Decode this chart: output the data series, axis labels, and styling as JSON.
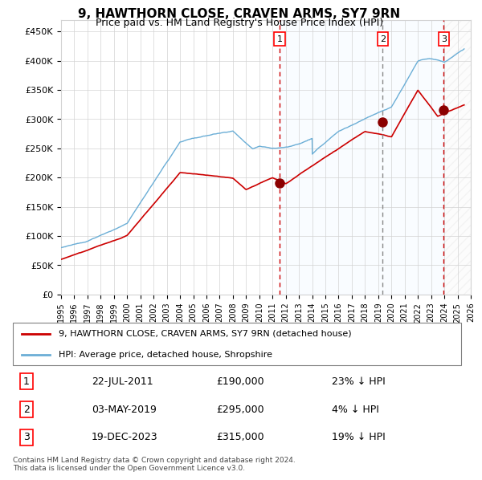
{
  "title": "9, HAWTHORN CLOSE, CRAVEN ARMS, SY7 9RN",
  "subtitle": "Price paid vs. HM Land Registry's House Price Index (HPI)",
  "x_start_year": 1995,
  "x_end_year": 2026,
  "y_ticks": [
    0,
    50000,
    100000,
    150000,
    200000,
    250000,
    300000,
    350000,
    400000,
    450000
  ],
  "y_tick_labels": [
    "£0",
    "£50K",
    "£100K",
    "£150K",
    "£200K",
    "£250K",
    "£300K",
    "£350K",
    "£400K",
    "£450K"
  ],
  "sale_dates": [
    "22-JUL-2011",
    "03-MAY-2019",
    "19-DEC-2023"
  ],
  "sale_years": [
    2011.55,
    2019.34,
    2023.96
  ],
  "sale_prices": [
    190000,
    295000,
    315000
  ],
  "sale_labels": [
    "1",
    "2",
    "3"
  ],
  "sale_pct_hpi": [
    "23% ↓ HPI",
    "4% ↓ HPI",
    "19% ↓ HPI"
  ],
  "hpi_color": "#6baed6",
  "price_color": "#cc0000",
  "sale_dot_color": "#8b0000",
  "background_shade_color": "#ddeeff",
  "vline1_color": "#cc0000",
  "vline2_color": "#888888",
  "vline3_color": "#cc0000",
  "hatch_region_color": "#cccccc",
  "legend_label_price": "9, HAWTHORN CLOSE, CRAVEN ARMS, SY7 9RN (detached house)",
  "legend_label_hpi": "HPI: Average price, detached house, Shropshire",
  "footer": "Contains HM Land Registry data © Crown copyright and database right 2024.\nThis data is licensed under the Open Government Licence v3.0.",
  "ylim": [
    0,
    470000
  ]
}
